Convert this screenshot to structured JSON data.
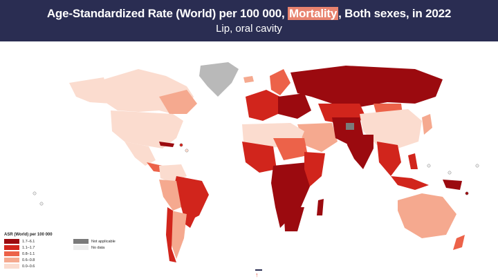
{
  "header": {
    "title_before": "Age-Standardized Rate (World) per 100 000, ",
    "title_highlight": "Mortality",
    "title_after": ", Both sexes, in 2022",
    "subtitle": "Lip, oral cavity"
  },
  "legend": {
    "title": "ASR (World) per 100 000",
    "classes": [
      {
        "label": "1.7–6.1",
        "color": "#9b0a0f"
      },
      {
        "label": "1.1–1.7",
        "color": "#d1251c"
      },
      {
        "label": "0.8–1.1",
        "color": "#ec6249"
      },
      {
        "label": "0.6–0.8",
        "color": "#f5a98f"
      },
      {
        "label": "0.0–0.6",
        "color": "#fbdccf"
      }
    ],
    "other": [
      {
        "label": "Not applicable",
        "color": "#7a7a7a"
      },
      {
        "label": "No data",
        "color": "#ececec"
      }
    ]
  },
  "colors": {
    "header_bg": "#2a2d52",
    "highlight": "#e8836f",
    "accent_arrow": "#e04a35"
  },
  "icons": {
    "scroll": "up-arrow-icon"
  },
  "scroll_arrow_glyph": "↑"
}
